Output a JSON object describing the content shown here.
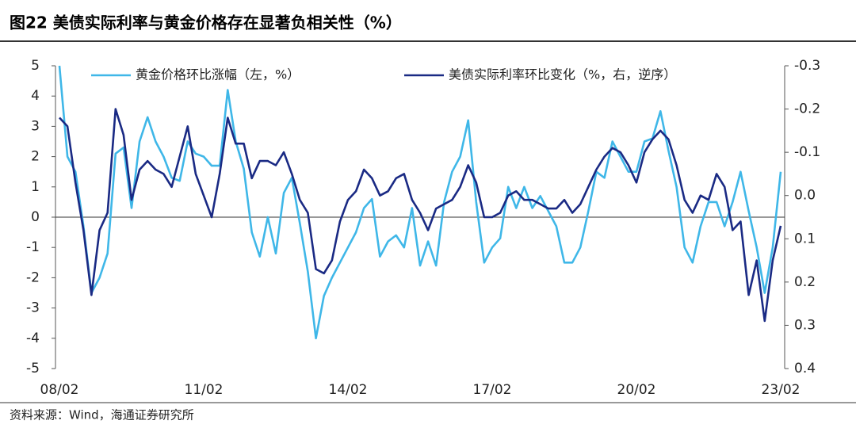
{
  "chart_data": {
    "type": "line",
    "title": "图22 美债实际利率与黄金价格存在显著负相关性（%）",
    "source": "资料来源：Wind，海通证券研究所",
    "categories": [
      "08/02",
      null,
      null,
      null,
      null,
      null,
      null,
      null,
      null,
      null,
      null,
      null,
      null,
      null,
      null,
      null,
      null,
      null,
      "11/02",
      null,
      null,
      null,
      null,
      null,
      null,
      null,
      null,
      null,
      null,
      null,
      null,
      null,
      null,
      null,
      null,
      null,
      "14/02",
      null,
      null,
      null,
      null,
      null,
      null,
      null,
      null,
      null,
      null,
      null,
      null,
      null,
      null,
      null,
      null,
      null,
      "17/02",
      null,
      null,
      null,
      null,
      null,
      null,
      null,
      null,
      null,
      null,
      null,
      null,
      null,
      null,
      null,
      null,
      null,
      "20/02",
      null,
      null,
      null,
      null,
      null,
      null,
      null,
      null,
      null,
      null,
      null,
      null,
      null,
      null,
      null,
      null,
      null,
      "23/02"
    ],
    "series": [
      {
        "name": "黄金价格环比涨幅（左，%）",
        "color": "#3fb7e8",
        "axis": "y",
        "values": [
          5,
          2.0,
          1.5,
          -0.3,
          -2.5,
          -2.0,
          -1.2,
          2.1,
          2.3,
          0.3,
          2.5,
          3.3,
          2.5,
          2.0,
          1.3,
          1.2,
          2.5,
          2.1,
          2.0,
          1.7,
          1.7,
          4.2,
          2.5,
          1.6,
          -0.5,
          -1.3,
          0.0,
          -1.2,
          0.8,
          1.3,
          -0.2,
          -1.8,
          -4.0,
          -2.6,
          -2.0,
          -1.5,
          -1.0,
          -0.5,
          0.3,
          0.6,
          -1.3,
          -0.8,
          -0.6,
          -1.0,
          0.3,
          -1.6,
          -0.8,
          -1.6,
          0.5,
          1.5,
          2.0,
          3.2,
          0.5,
          -1.5,
          -1.0,
          -0.7,
          1.0,
          0.3,
          1.0,
          0.3,
          0.7,
          0.2,
          -0.3,
          -1.5,
          -1.5,
          -1.0,
          0.2,
          1.5,
          1.3,
          2.5,
          2.0,
          1.5,
          1.5,
          2.5,
          2.6,
          3.5,
          2.2,
          1.0,
          -1.0,
          -1.5,
          -0.3,
          0.5,
          0.5,
          -0.3,
          0.5,
          1.5,
          0.2,
          -1.0,
          -2.5,
          -1.0,
          1.5
        ]
      },
      {
        "name": "美债实际利率环比变化（%，右，逆序）",
        "color": "#1a2a84",
        "axis": "y2",
        "values": [
          -0.18,
          -0.16,
          -0.03,
          0.08,
          0.23,
          0.08,
          0.04,
          -0.2,
          -0.14,
          0.01,
          -0.06,
          -0.08,
          -0.06,
          -0.05,
          -0.02,
          -0.09,
          -0.16,
          -0.05,
          0.0,
          0.05,
          -0.05,
          -0.18,
          -0.12,
          -0.12,
          -0.04,
          -0.08,
          -0.08,
          -0.07,
          -0.1,
          -0.05,
          0.01,
          0.04,
          0.17,
          0.18,
          0.15,
          0.06,
          0.01,
          -0.01,
          -0.06,
          -0.04,
          0.0,
          -0.01,
          -0.04,
          -0.05,
          0.01,
          0.04,
          0.08,
          0.03,
          0.02,
          0.01,
          -0.02,
          -0.07,
          -0.03,
          0.05,
          0.05,
          0.04,
          0.0,
          -0.01,
          0.01,
          0.01,
          0.02,
          0.03,
          0.03,
          0.01,
          0.04,
          0.02,
          -0.02,
          -0.06,
          -0.09,
          -0.11,
          -0.1,
          -0.07,
          -0.03,
          -0.1,
          -0.13,
          -0.15,
          -0.13,
          -0.07,
          0.01,
          0.04,
          0.0,
          0.01,
          -0.05,
          -0.02,
          0.08,
          0.06,
          0.23,
          0.15,
          0.29,
          0.15,
          0.07
        ]
      }
    ],
    "ylim": [
      -5,
      5
    ],
    "yticks": [
      -5,
      -4,
      -3,
      -2,
      -1,
      0,
      1,
      2,
      3,
      4,
      5
    ],
    "y2lim": [
      -0.3,
      0.4
    ],
    "y2_inverted": true,
    "y2ticks": [
      -0.3,
      -0.2,
      -0.1,
      {
        "value": 0,
        "label": "0.0"
      },
      0.1,
      0.2,
      0.3,
      0.4
    ],
    "legend": "top"
  }
}
